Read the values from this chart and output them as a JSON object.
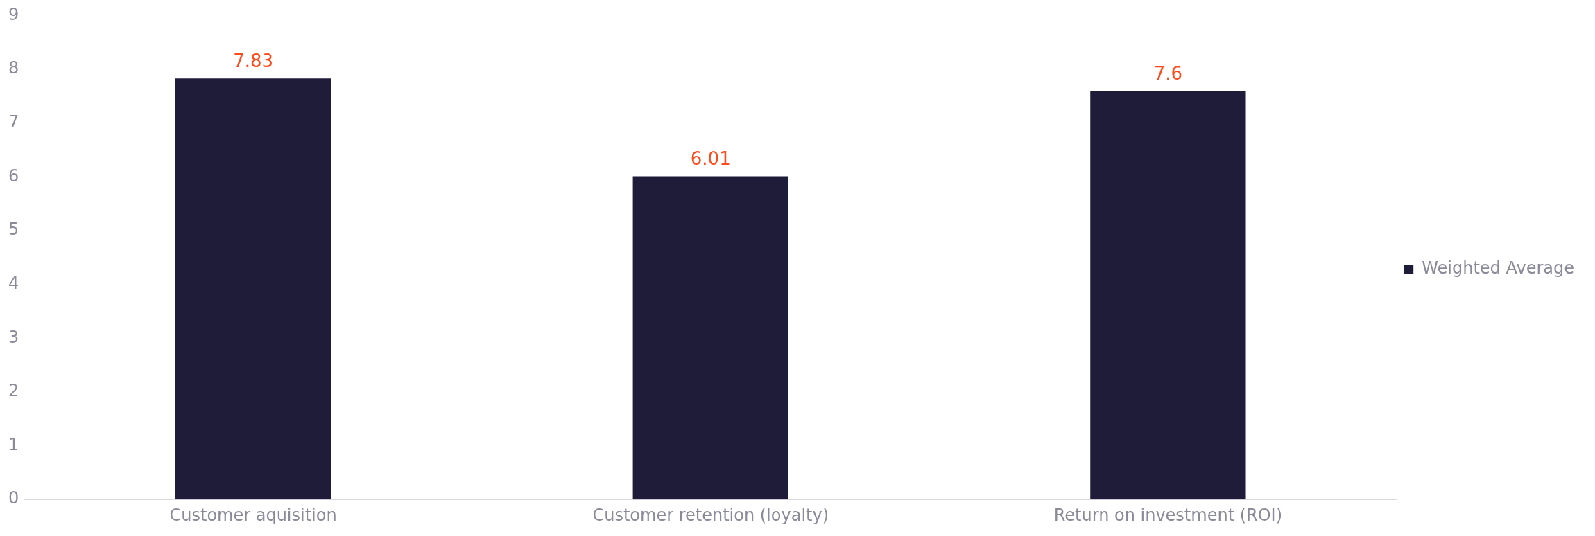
{
  "chart_data": {
    "type": "bar",
    "categories": [
      "Customer aquisition",
      "Customer retention (loyalty)",
      "Return on investment (ROI)"
    ],
    "series": [
      {
        "name": "Weighted Average",
        "color": "#1f1c3a",
        "values": [
          7.83,
          6.01,
          7.6
        ]
      }
    ],
    "ylim": [
      0,
      9
    ],
    "yticks": [
      0,
      1,
      2,
      3,
      4,
      5,
      6,
      7,
      8,
      9
    ],
    "grid": false,
    "legend": "right",
    "data_labels": true
  }
}
